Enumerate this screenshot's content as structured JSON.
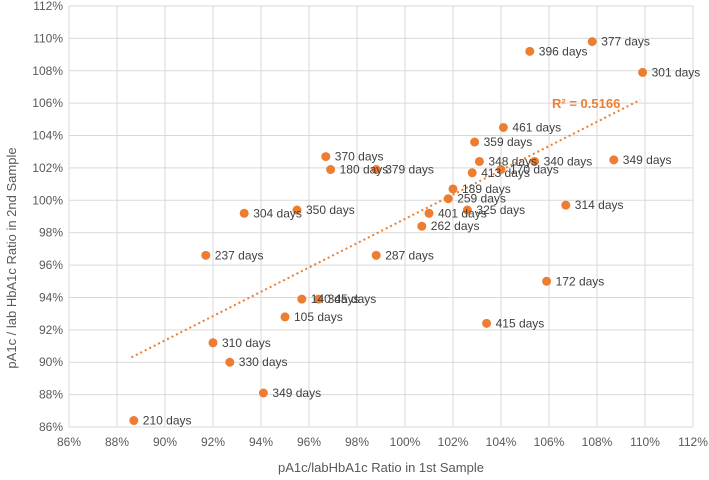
{
  "chart_data": {
    "type": "scatter",
    "title": "",
    "xlabel": "pA1c/labHbA1c Ratio in 1st Sample",
    "ylabel": "pA1c / lab HbA1c Ratio in 2nd Sample",
    "xlim": [
      86,
      112
    ],
    "ylim": [
      86,
      112
    ],
    "x_ticks": [
      86,
      88,
      90,
      92,
      94,
      96,
      98,
      100,
      102,
      104,
      106,
      108,
      110,
      112
    ],
    "y_ticks": [
      86,
      88,
      90,
      92,
      94,
      96,
      98,
      100,
      102,
      104,
      106,
      108,
      110,
      112
    ],
    "tick_suffix": "%",
    "grid": true,
    "marker_color": "#ED7D31",
    "trendline": {
      "type": "linear",
      "x_range": [
        88.6,
        109.8
      ],
      "y_range": [
        90.3,
        106.2
      ],
      "color": "#ED7D31",
      "style": "dotted",
      "label": "R² = 0.5166"
    },
    "points": [
      {
        "x": 107.8,
        "y": 109.8,
        "label": "377 days"
      },
      {
        "x": 105.2,
        "y": 109.2,
        "label": "396 days"
      },
      {
        "x": 109.9,
        "y": 107.9,
        "label": "301 days"
      },
      {
        "x": 104.1,
        "y": 104.5,
        "label": "461 days"
      },
      {
        "x": 102.9,
        "y": 103.6,
        "label": "359 days"
      },
      {
        "x": 96.7,
        "y": 102.7,
        "label": "370 days"
      },
      {
        "x": 103.1,
        "y": 102.4,
        "label": "348 days"
      },
      {
        "x": 105.4,
        "y": 102.4,
        "label": "340 days"
      },
      {
        "x": 108.7,
        "y": 102.5,
        "label": "349 days"
      },
      {
        "x": 96.9,
        "y": 101.9,
        "label": "180 days"
      },
      {
        "x": 98.8,
        "y": 101.9,
        "label": "379 days"
      },
      {
        "x": 104.0,
        "y": 101.9,
        "label": "170 days"
      },
      {
        "x": 102.8,
        "y": 101.7,
        "label": "413 days"
      },
      {
        "x": 102.0,
        "y": 100.7,
        "label": "189 days"
      },
      {
        "x": 101.8,
        "y": 100.1,
        "label": "259 days"
      },
      {
        "x": 102.6,
        "y": 99.4,
        "label": "325 days"
      },
      {
        "x": 106.7,
        "y": 99.7,
        "label": "314 days"
      },
      {
        "x": 95.5,
        "y": 99.4,
        "label": "350 days"
      },
      {
        "x": 93.3,
        "y": 99.2,
        "label": "304 days"
      },
      {
        "x": 101.0,
        "y": 99.2,
        "label": "401 days"
      },
      {
        "x": 100.7,
        "y": 98.4,
        "label": "262 days"
      },
      {
        "x": 91.7,
        "y": 96.6,
        "label": "237 days"
      },
      {
        "x": 98.8,
        "y": 96.6,
        "label": "287 days"
      },
      {
        "x": 105.9,
        "y": 95.0,
        "label": "172 days"
      },
      {
        "x": 95.7,
        "y": 93.9,
        "label": "140 days"
      },
      {
        "x": 96.4,
        "y": 93.9,
        "label": "345 days"
      },
      {
        "x": 95.0,
        "y": 92.8,
        "label": "105 days"
      },
      {
        "x": 103.4,
        "y": 92.4,
        "label": "415 days"
      },
      {
        "x": 92.0,
        "y": 91.2,
        "label": "310 days"
      },
      {
        "x": 92.7,
        "y": 90.0,
        "label": "330 days"
      },
      {
        "x": 94.1,
        "y": 88.1,
        "label": "349 days"
      },
      {
        "x": 88.7,
        "y": 86.4,
        "label": "210 days"
      }
    ]
  }
}
